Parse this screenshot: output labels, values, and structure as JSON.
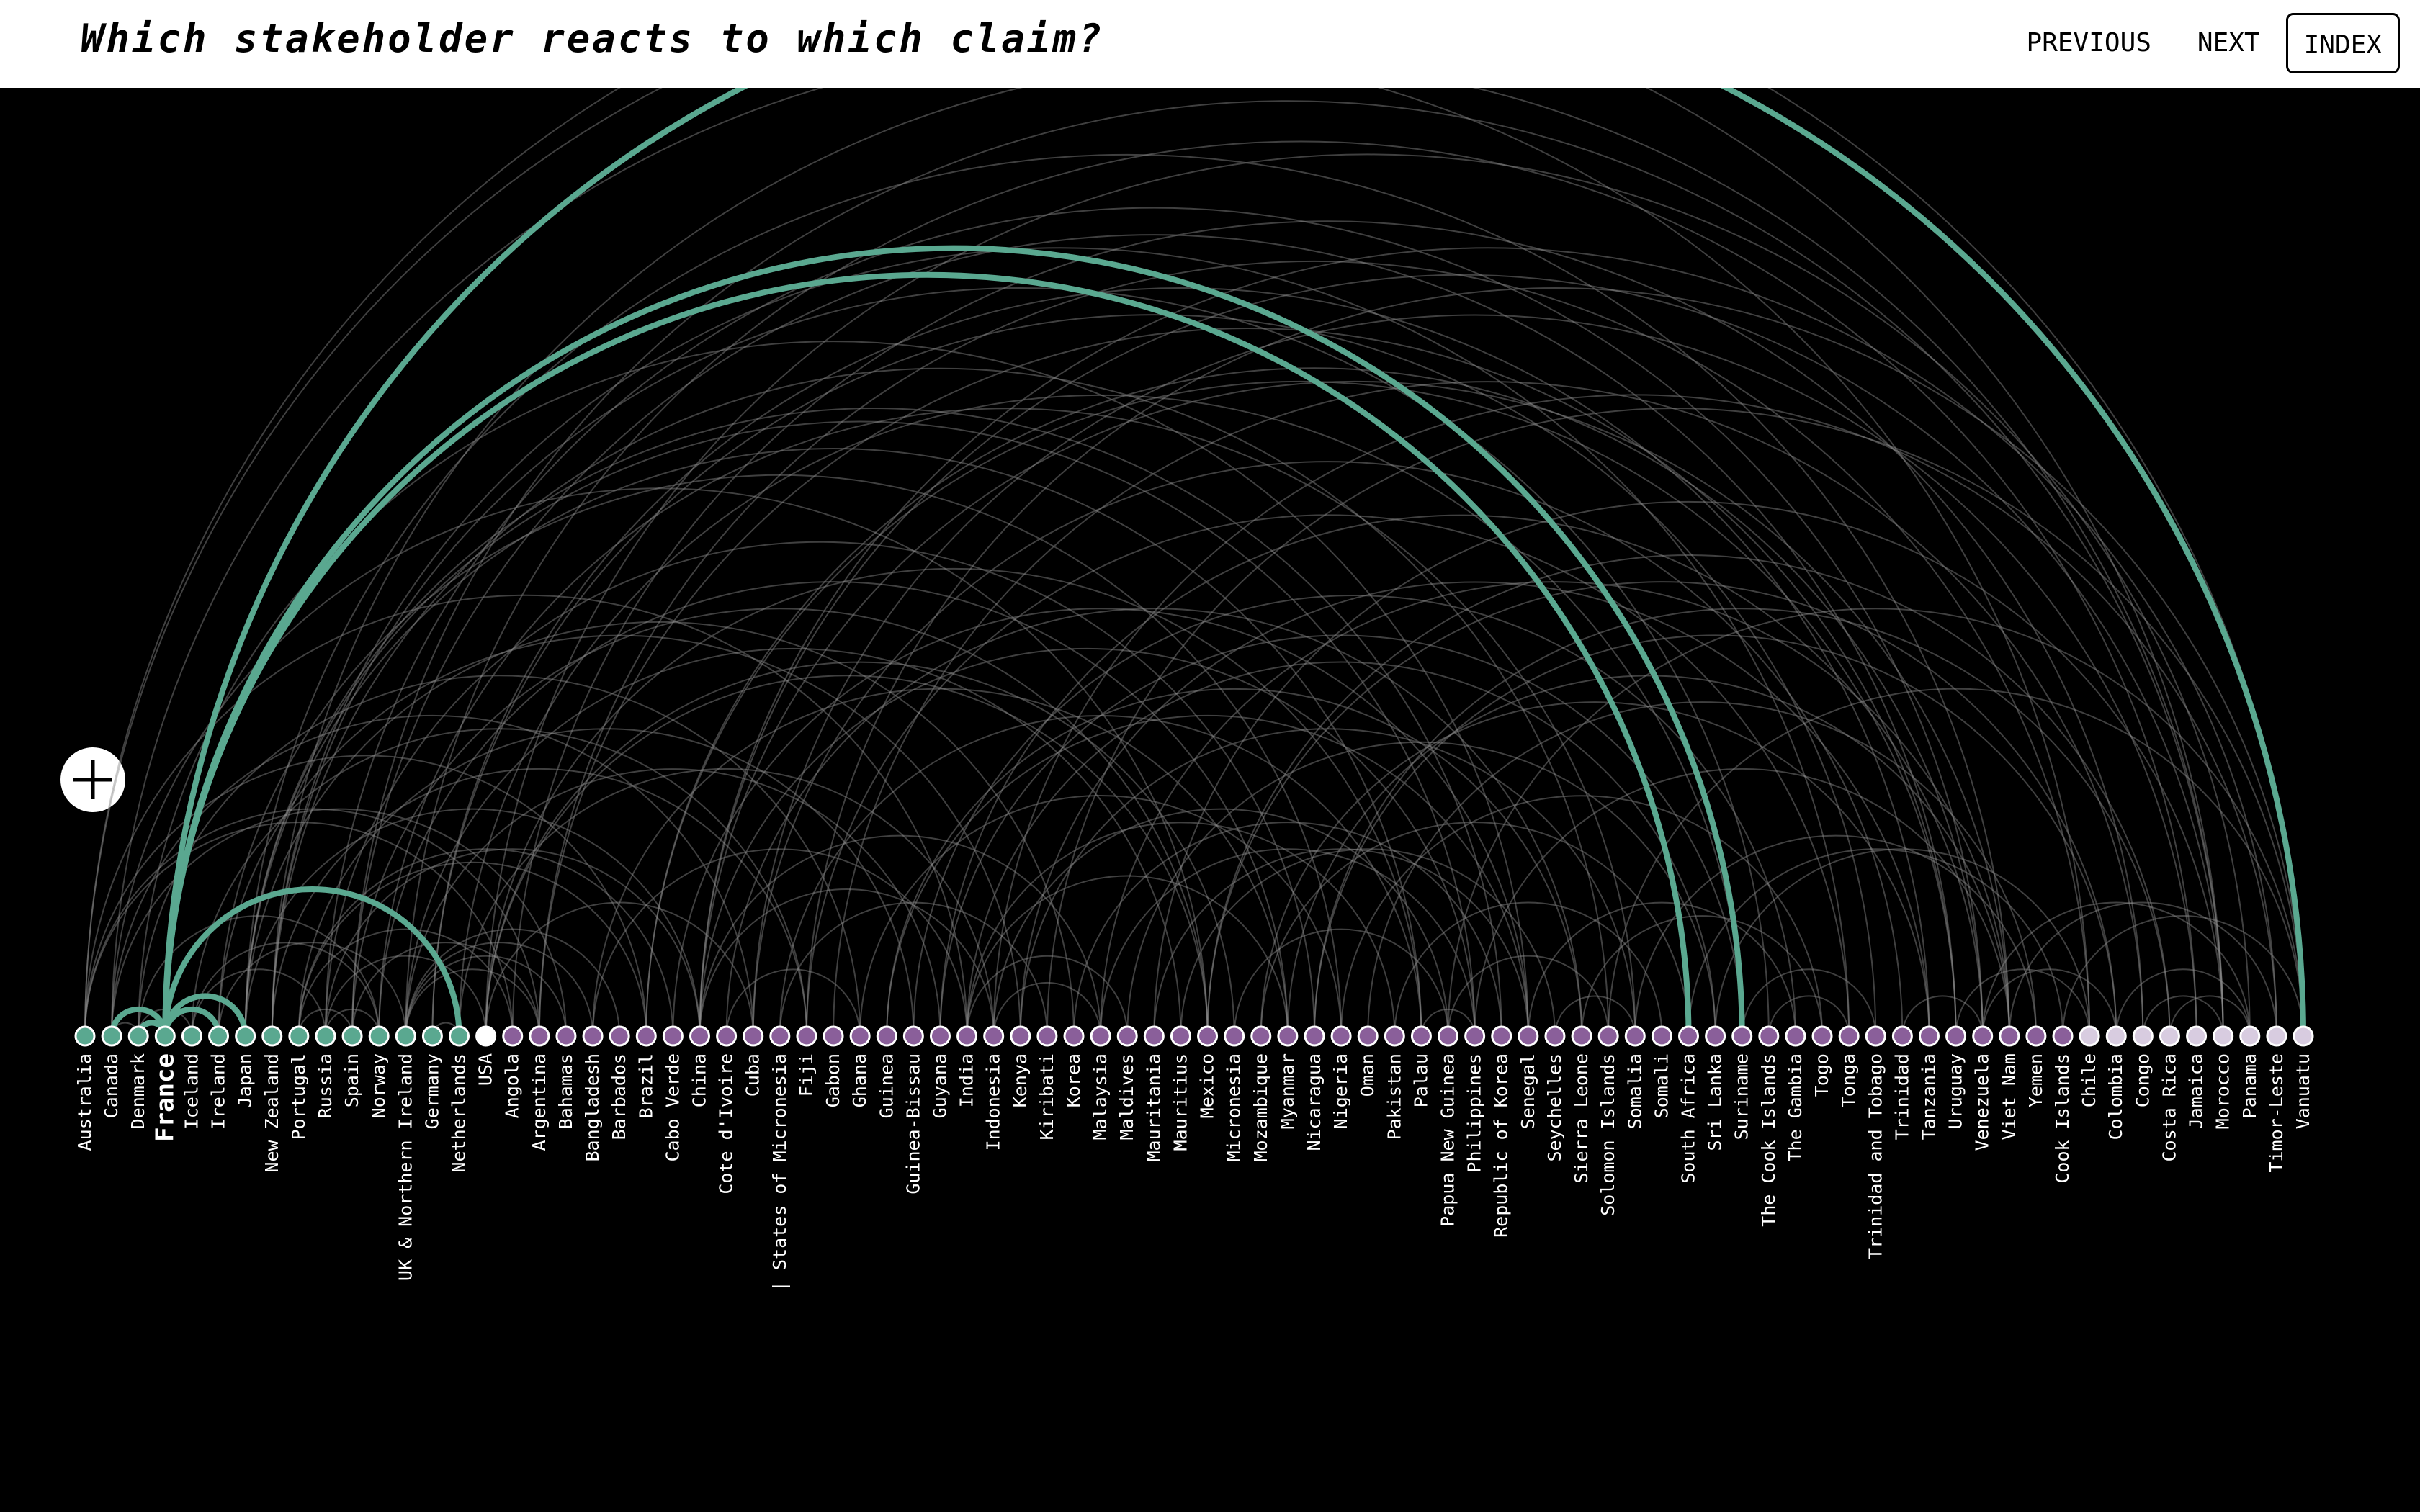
{
  "header": {
    "title": "Which stakeholder reacts to which claim?",
    "nav": [
      "PREVIOUS",
      "NEXT",
      "INDEX"
    ]
  },
  "zoom_icon": "plus-icon",
  "legend_colors": {
    "claimant": "#5aa890",
    "reactor": "#8a5f9a",
    "other": "#d8cce0",
    "usa": "#ffffff",
    "arc": "#8d8d8d",
    "highlight_arc": "#5aa890"
  },
  "highlighted_node": "France",
  "nodes": [
    {
      "name": "Australia",
      "group": "claimant"
    },
    {
      "name": "Canada",
      "group": "claimant"
    },
    {
      "name": "Denmark",
      "group": "claimant"
    },
    {
      "name": "France",
      "group": "claimant"
    },
    {
      "name": "Iceland",
      "group": "claimant"
    },
    {
      "name": "Ireland",
      "group": "claimant"
    },
    {
      "name": "Japan",
      "group": "claimant"
    },
    {
      "name": "New Zealand",
      "group": "claimant"
    },
    {
      "name": "Portugal",
      "group": "claimant"
    },
    {
      "name": "Russia",
      "group": "claimant"
    },
    {
      "name": "Spain",
      "group": "claimant"
    },
    {
      "name": "Norway",
      "group": "claimant"
    },
    {
      "name": "UK & Northern Ireland",
      "group": "claimant"
    },
    {
      "name": "Germany",
      "group": "claimant"
    },
    {
      "name": "Netherlands",
      "group": "claimant"
    },
    {
      "name": "USA",
      "group": "usa"
    },
    {
      "name": "Angola",
      "group": "reactor"
    },
    {
      "name": "Argentina",
      "group": "reactor"
    },
    {
      "name": "Bahamas",
      "group": "reactor"
    },
    {
      "name": "Bangladesh",
      "group": "reactor"
    },
    {
      "name": "Barbados",
      "group": "reactor"
    },
    {
      "name": "Brazil",
      "group": "reactor"
    },
    {
      "name": "Cabo Verde",
      "group": "reactor"
    },
    {
      "name": "China",
      "group": "reactor"
    },
    {
      "name": "Cote d'Ivoire",
      "group": "reactor"
    },
    {
      "name": "Cuba",
      "group": "reactor"
    },
    {
      "name": "| States of Micronesia",
      "group": "reactor"
    },
    {
      "name": "Fiji",
      "group": "reactor"
    },
    {
      "name": "Gabon",
      "group": "reactor"
    },
    {
      "name": "Ghana",
      "group": "reactor"
    },
    {
      "name": "Guinea",
      "group": "reactor"
    },
    {
      "name": "Guinea-Bissau",
      "group": "reactor"
    },
    {
      "name": "Guyana",
      "group": "reactor"
    },
    {
      "name": "India",
      "group": "reactor"
    },
    {
      "name": "Indonesia",
      "group": "reactor"
    },
    {
      "name": "Kenya",
      "group": "reactor"
    },
    {
      "name": "Kiribati",
      "group": "reactor"
    },
    {
      "name": "Korea",
      "group": "reactor"
    },
    {
      "name": "Malaysia",
      "group": "reactor"
    },
    {
      "name": "Maldives",
      "group": "reactor"
    },
    {
      "name": "Mauritania",
      "group": "reactor"
    },
    {
      "name": "Mauritius",
      "group": "reactor"
    },
    {
      "name": "Mexico",
      "group": "reactor"
    },
    {
      "name": "Micronesia",
      "group": "reactor"
    },
    {
      "name": "Mozambique",
      "group": "reactor"
    },
    {
      "name": "Myanmar",
      "group": "reactor"
    },
    {
      "name": "Nicaragua",
      "group": "reactor"
    },
    {
      "name": "Nigeria",
      "group": "reactor"
    },
    {
      "name": "Oman",
      "group": "reactor"
    },
    {
      "name": "Pakistan",
      "group": "reactor"
    },
    {
      "name": "Palau",
      "group": "reactor"
    },
    {
      "name": "Papua New Guinea",
      "group": "reactor"
    },
    {
      "name": "Philippines",
      "group": "reactor"
    },
    {
      "name": "Republic of Korea",
      "group": "reactor"
    },
    {
      "name": "Senegal",
      "group": "reactor"
    },
    {
      "name": "Seychelles",
      "group": "reactor"
    },
    {
      "name": "Sierra Leone",
      "group": "reactor"
    },
    {
      "name": "Solomon Islands",
      "group": "reactor"
    },
    {
      "name": "Somalia",
      "group": "reactor"
    },
    {
      "name": "Somali",
      "group": "reactor"
    },
    {
      "name": "South Africa",
      "group": "reactor"
    },
    {
      "name": "Sri Lanka",
      "group": "reactor"
    },
    {
      "name": "Suriname",
      "group": "reactor"
    },
    {
      "name": "The Cook Islands",
      "group": "reactor"
    },
    {
      "name": "The Gambia",
      "group": "reactor"
    },
    {
      "name": "Togo",
      "group": "reactor"
    },
    {
      "name": "Tonga",
      "group": "reactor"
    },
    {
      "name": "Trinidad and Tobago",
      "group": "reactor"
    },
    {
      "name": "Trinidad",
      "group": "reactor"
    },
    {
      "name": "Tanzania",
      "group": "reactor"
    },
    {
      "name": "Uruguay",
      "group": "reactor"
    },
    {
      "name": "Venezuela",
      "group": "reactor"
    },
    {
      "name": "Viet Nam",
      "group": "reactor"
    },
    {
      "name": "Yemen",
      "group": "reactor"
    },
    {
      "name": "Cook Islands",
      "group": "reactor"
    },
    {
      "name": "Chile",
      "group": "other"
    },
    {
      "name": "Colombia",
      "group": "other"
    },
    {
      "name": "Congo",
      "group": "other"
    },
    {
      "name": "Costa Rica",
      "group": "other"
    },
    {
      "name": "Jamaica",
      "group": "other"
    },
    {
      "name": "Morocco",
      "group": "other"
    },
    {
      "name": "Panama",
      "group": "other"
    },
    {
      "name": "Timor-Leste",
      "group": "other"
    },
    {
      "name": "Vanuatu",
      "group": "other"
    }
  ],
  "links": [
    [
      "France",
      "Vanuatu",
      1
    ],
    [
      "France",
      "Suriname",
      1
    ],
    [
      "France",
      "South Africa",
      1
    ],
    [
      "France",
      "Netherlands",
      1
    ],
    [
      "France",
      "Japan",
      1
    ],
    [
      "France",
      "Ireland",
      1
    ],
    [
      "Canada",
      "France",
      1
    ],
    [
      "Denmark",
      "France",
      1
    ],
    [
      "Australia",
      "Angola",
      0
    ],
    [
      "Australia",
      "Argentina",
      0
    ],
    [
      "Australia",
      "Brazil",
      0
    ],
    [
      "Australia",
      "India",
      0
    ],
    [
      "Australia",
      "Morocco",
      0
    ],
    [
      "Australia",
      "Vanuatu",
      0
    ],
    [
      "Canada",
      "Denmark",
      0
    ],
    [
      "Canada",
      "Bahamas",
      0
    ],
    [
      "Canada",
      "Cuba",
      0
    ],
    [
      "Canada",
      "Mexico",
      0
    ],
    [
      "Canada",
      "Chile",
      0
    ],
    [
      "Denmark",
      "Iceland",
      0
    ],
    [
      "Denmark",
      "Norway",
      0
    ],
    [
      "Denmark",
      "Ghana",
      0
    ],
    [
      "Denmark",
      "Senegal",
      0
    ],
    [
      "Iceland",
      "Norway",
      0
    ],
    [
      "Iceland",
      "Russia",
      0
    ],
    [
      "Iceland",
      "Fiji",
      0
    ],
    [
      "Ireland",
      "UK & Northern Ireland",
      0
    ],
    [
      "Ireland",
      "Nigeria",
      0
    ],
    [
      "Ireland",
      "Kenya",
      0
    ],
    [
      "Japan",
      "China",
      0
    ],
    [
      "Japan",
      "Korea",
      0
    ],
    [
      "Japan",
      "Palau",
      0
    ],
    [
      "Japan",
      "Philippines",
      0
    ],
    [
      "Japan",
      "Republic of Korea",
      0
    ],
    [
      "Japan",
      "Viet Nam",
      0
    ],
    [
      "New Zealand",
      "Fiji",
      0
    ],
    [
      "New Zealand",
      "Tonga",
      0
    ],
    [
      "New Zealand",
      "The Cook Islands",
      0
    ],
    [
      "New Zealand",
      "Solomon Islands",
      0
    ],
    [
      "New Zealand",
      "Morocco",
      0
    ],
    [
      "Portugal",
      "Spain",
      0
    ],
    [
      "Portugal",
      "Cabo Verde",
      0
    ],
    [
      "Portugal",
      "Guinea-Bissau",
      0
    ],
    [
      "Portugal",
      "Brazil",
      0
    ],
    [
      "Portugal",
      "Angola",
      0
    ],
    [
      "Russia",
      "Norway",
      0
    ],
    [
      "Russia",
      "China",
      0
    ],
    [
      "Russia",
      "USA",
      0
    ],
    [
      "Russia",
      "Nicaragua",
      0
    ],
    [
      "Russia",
      "Venezuela",
      0
    ],
    [
      "Spain",
      "Morocco",
      0
    ],
    [
      "Spain",
      "Argentina",
      0
    ],
    [
      "Spain",
      "Uruguay",
      0
    ],
    [
      "Spain",
      "Mexico",
      0
    ],
    [
      "Norway",
      "Somalia",
      0
    ],
    [
      "Norway",
      "Myanmar",
      0
    ],
    [
      "UK & Northern Ireland",
      "Bahamas",
      0
    ],
    [
      "UK & Northern Ireland",
      "Barbados",
      0
    ],
    [
      "UK & Northern Ireland",
      "Bangladesh",
      0
    ],
    [
      "UK & Northern Ireland",
      "Guyana",
      0
    ],
    [
      "UK & Northern Ireland",
      "Jamaica",
      0
    ],
    [
      "UK & Northern Ireland",
      "Mauritius",
      0
    ],
    [
      "UK & Northern Ireland",
      "Argentina",
      0
    ],
    [
      "Germany",
      "Netherlands",
      0
    ],
    [
      "Germany",
      "Trinidad and Tobago",
      0
    ],
    [
      "Germany",
      "Tanzania",
      0
    ],
    [
      "Netherlands",
      "Suriname",
      0
    ],
    [
      "Netherlands",
      "Indonesia",
      0
    ],
    [
      "USA",
      "Cuba",
      0
    ],
    [
      "USA",
      "Micronesia",
      0
    ],
    [
      "USA",
      "Palau",
      0
    ],
    [
      "USA",
      "Mexico",
      0
    ],
    [
      "USA",
      "Panama",
      0
    ],
    [
      "Angola",
      "Congo",
      0
    ],
    [
      "Argentina",
      "Uruguay",
      0
    ],
    [
      "Argentina",
      "Chile",
      0
    ],
    [
      "Bangladesh",
      "Myanmar",
      0
    ],
    [
      "Bangladesh",
      "India",
      0
    ],
    [
      "Brazil",
      "Uruguay",
      0
    ],
    [
      "Brazil",
      "Venezuela",
      0
    ],
    [
      "Cabo Verde",
      "Senegal",
      0
    ],
    [
      "China",
      "Viet Nam",
      0
    ],
    [
      "China",
      "Philippines",
      0
    ],
    [
      "China",
      "Malaysia",
      0
    ],
    [
      "China",
      "Indonesia",
      0
    ],
    [
      "China",
      "Timor-Leste",
      0
    ],
    [
      "China",
      "Morocco",
      0
    ],
    [
      "Cote d'Ivoire",
      "Ghana",
      0
    ],
    [
      "Cote d'Ivoire",
      "Sierra Leone",
      0
    ],
    [
      "Cuba",
      "Trinidad",
      0
    ],
    [
      "Cuba",
      "Jamaica",
      0
    ],
    [
      "| States of Micronesia",
      "Kiribati",
      0
    ],
    [
      "| States of Micronesia",
      "Palau",
      0
    ],
    [
      "Fiji",
      "Vanuatu",
      0
    ],
    [
      "Fiji",
      "Tonga",
      0
    ],
    [
      "Gabon",
      "Congo",
      0
    ],
    [
      "Ghana",
      "Nigeria",
      0
    ],
    [
      "Guinea",
      "Sierra Leone",
      0
    ],
    [
      "Guinea",
      "Senegal",
      0
    ],
    [
      "Guinea-Bissau",
      "The Gambia",
      0
    ],
    [
      "Guyana",
      "Venezuela",
      0
    ],
    [
      "Guyana",
      "Suriname",
      0
    ],
    [
      "India",
      "Pakistan",
      0
    ],
    [
      "India",
      "Sri Lanka",
      0
    ],
    [
      "India",
      "Maldives",
      0
    ],
    [
      "India",
      "Myanmar",
      0
    ],
    [
      "Indonesia",
      "Malaysia",
      0
    ],
    [
      "Indonesia",
      "Timor-Leste",
      0
    ],
    [
      "Indonesia",
      "Papua New Guinea",
      0
    ],
    [
      "Kenya",
      "Somalia",
      0
    ],
    [
      "Kenya",
      "Tanzania",
      0
    ],
    [
      "Kiribati",
      "Vanuatu",
      0
    ],
    [
      "Korea",
      "Republic of Korea",
      0
    ],
    [
      "Malaysia",
      "Viet Nam",
      0
    ],
    [
      "Malaysia",
      "Philippines",
      0
    ],
    [
      "Maldives",
      "Sri Lanka",
      0
    ],
    [
      "Mauritania",
      "Senegal",
      0
    ],
    [
      "Mauritania",
      "Morocco",
      0
    ],
    [
      "Mauritius",
      "Seychelles",
      0
    ],
    [
      "Mexico",
      "Colombia",
      0
    ],
    [
      "Mexico",
      "Costa Rica",
      0
    ],
    [
      "Micronesia",
      "Papua New Guinea",
      0
    ],
    [
      "Mozambique",
      "Tanzania",
      0
    ],
    [
      "Mozambique",
      "South Africa",
      0
    ],
    [
      "Myanmar",
      "Viet Nam",
      0
    ],
    [
      "Nicaragua",
      "Costa Rica",
      0
    ],
    [
      "Nicaragua",
      "Colombia",
      0
    ],
    [
      "Nigeria",
      "Togo",
      0
    ],
    [
      "Oman",
      "Yemen",
      0
    ],
    [
      "Pakistan",
      "Somali",
      0
    ],
    [
      "Palau",
      "Philippines",
      0
    ],
    [
      "Papua New Guinea",
      "Solomon Islands",
      0
    ],
    [
      "Papua New Guinea",
      "Vanuatu",
      0
    ],
    [
      "Philippines",
      "Viet Nam",
      0
    ],
    [
      "Senegal",
      "The Gambia",
      0
    ],
    [
      "Seychelles",
      "Somalia",
      0
    ],
    [
      "Sierra Leone",
      "Togo",
      0
    ],
    [
      "Solomon Islands",
      "Vanuatu",
      0
    ],
    [
      "Somalia",
      "Yemen",
      0
    ],
    [
      "South Africa",
      "Cook Islands",
      0
    ],
    [
      "Sri Lanka",
      "Chile",
      0
    ],
    [
      "Suriname",
      "Trinidad and Tobago",
      0
    ],
    [
      "The Cook Islands",
      "Tonga",
      0
    ],
    [
      "Trinidad",
      "Venezuela",
      0
    ],
    [
      "Uruguay",
      "Chile",
      0
    ],
    [
      "Venezuela",
      "Colombia",
      0
    ],
    [
      "Venezuela",
      "Panama",
      0
    ],
    [
      "Viet Nam",
      "Timor-Leste",
      0
    ],
    [
      "Cook Islands",
      "Vanuatu",
      0
    ],
    [
      "Colombia",
      "Panama",
      0
    ],
    [
      "Congo",
      "Morocco",
      0
    ],
    [
      "Costa Rica",
      "Panama",
      0
    ]
  ]
}
